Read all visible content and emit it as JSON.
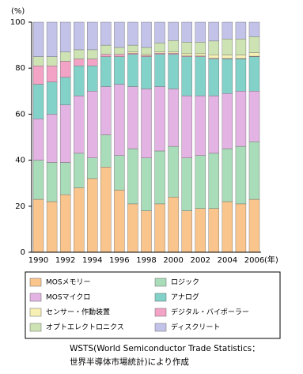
{
  "chart_data": {
    "type": "stacked_bar",
    "y_label": "(%)",
    "x_label": "(年)",
    "categories": [
      "1990",
      null,
      "1992",
      null,
      "1994",
      null,
      "1996",
      null,
      "1998",
      null,
      "2000",
      null,
      "2002",
      null,
      "2004",
      null,
      "2006"
    ],
    "series": [
      {
        "name": "MOSメモリー",
        "color": "#fac58c",
        "values": [
          23,
          22,
          25,
          28,
          32,
          37,
          27,
          21,
          18,
          21,
          24,
          18,
          19,
          19,
          22,
          21,
          23
        ]
      },
      {
        "name": "ロジック",
        "color": "#a9dcb9",
        "values": [
          17,
          17,
          14,
          15,
          9,
          14,
          15,
          24,
          23,
          23,
          22,
          23,
          23,
          24,
          23,
          25,
          25
        ]
      },
      {
        "name": "MOSマイクロ",
        "color": "#e3b3e3",
        "values": [
          18,
          21,
          25,
          25,
          29,
          21,
          31,
          27,
          30,
          28,
          25,
          27,
          26,
          25,
          24,
          24,
          22
        ]
      },
      {
        "name": "アナログ",
        "color": "#82d2c9",
        "values": [
          15,
          14,
          12,
          13,
          11,
          13,
          12,
          14,
          14,
          14,
          15,
          17,
          17,
          16,
          15,
          14,
          15
        ]
      },
      {
        "name": "デジタル・バイポーラー",
        "color": "#f3a3c6",
        "values": [
          8,
          7,
          7,
          3,
          3,
          1,
          1,
          0.5,
          0.5,
          0.5,
          0.5,
          0.3,
          0.3,
          0.3,
          0.2,
          0.2,
          0.2
        ]
      },
      {
        "name": "センサー・作動装置",
        "color": "#f7f0b4",
        "values": [
          0,
          0,
          0,
          0,
          0,
          0,
          0,
          0.5,
          0.5,
          0.5,
          0.5,
          1,
          1,
          1.5,
          1.5,
          1.5,
          1.5
        ]
      },
      {
        "name": "オプトエレクトロニクス",
        "color": "#cde3b3",
        "values": [
          4,
          4,
          4,
          4,
          4,
          4,
          3,
          3,
          3,
          4,
          5,
          5,
          5,
          6,
          7,
          7,
          7
        ]
      },
      {
        "name": "ディスクリート",
        "color": "#c3c3ea",
        "values": [
          15,
          15,
          13,
          12,
          12,
          10,
          11,
          10,
          11,
          9,
          8,
          8.7,
          8.7,
          8.2,
          7.3,
          7.3,
          6.3
        ]
      }
    ],
    "ylim": [
      0,
      100
    ],
    "yticks": [
      0,
      20,
      40,
      60,
      80,
      100
    ],
    "grid": false,
    "source": [
      "WSTS(World Semiconductor Trade Statistics：",
      "世界半導体市場統計)により作成"
    ]
  }
}
